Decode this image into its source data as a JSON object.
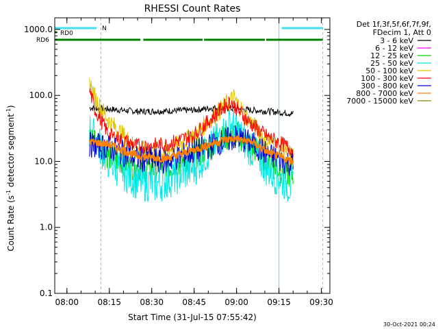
{
  "chart_data": {
    "type": "line",
    "title": "RHESSI Count Rates",
    "xlabel": "Start Time (31-Jul-15 07:55:42)",
    "ylabel": "Count Rate (s⁻¹ detector segment⁻¹)",
    "ylabel_main": "Count Rate (s",
    "ylabel_sup1": "-1",
    "ylabel_mid": " detector segment",
    "ylabel_sup2": "-1",
    "ylabel_end": ")",
    "y_scale": "log",
    "ylim": [
      0.1,
      1500
    ],
    "xlim": [
      "07:55:42",
      "09:33:00"
    ],
    "x_ticks": [
      "08:00",
      "08:15",
      "08:30",
      "08:45",
      "09:00",
      "09:15",
      "09:30"
    ],
    "y_ticks": [
      "1000.0",
      "100.0",
      "10.0",
      "1.0",
      "0.1"
    ],
    "legend_header": [
      "Det 1f,3f,5f,6f,7f,9f,",
      "FDecim 1, Att 0"
    ],
    "legend_position": "outside-right",
    "footer_date": "30-Oct-2021 00:24",
    "flags": [
      {
        "label": "N",
        "color": "#40e0f0",
        "segments": [
          [
            "07:55:42",
            "08:10:30"
          ],
          [
            "09:16:00",
            "09:30:30"
          ]
        ]
      },
      {
        "label": "RD0",
        "color": "#008000",
        "segments": [
          [
            "07:55:42",
            "07:56:30"
          ]
        ]
      },
      {
        "label": "RD6",
        "color": "#008000",
        "segments": [
          [
            "07:55:42",
            "08:26:00"
          ],
          [
            "08:27:00",
            "08:48:00"
          ],
          [
            "08:48:30",
            "09:10:00"
          ],
          [
            "09:10:30",
            "09:30:30"
          ]
        ]
      }
    ],
    "vertical_lines": [
      {
        "time": "07:55:42",
        "style": "solid",
        "color": "#40e0f0"
      },
      {
        "time": "08:12:00",
        "style": "dashed",
        "color": "#40e0f0"
      },
      {
        "time": "09:15:00",
        "style": "solid",
        "color": "#40e0f0"
      },
      {
        "time": "09:30:30",
        "style": "dashed",
        "color": "#40e0f0"
      }
    ],
    "series": [
      {
        "name": "3 - 6 keV",
        "color": "#000000",
        "points": [
          [
            "08:08:00",
            65
          ],
          [
            "08:15:00",
            62
          ],
          [
            "08:25:00",
            57
          ],
          [
            "08:35:00",
            58
          ],
          [
            "08:45:00",
            60
          ],
          [
            "08:52:00",
            65
          ],
          [
            "08:57:00",
            64
          ],
          [
            "09:05:00",
            60
          ],
          [
            "09:12:00",
            57
          ],
          [
            "09:20:00",
            53
          ]
        ]
      },
      {
        "name": "6 - 12 keV",
        "color": "#ff00ff",
        "points": []
      },
      {
        "name": "12 - 25 keV",
        "color": "#00d000",
        "points": [
          [
            "08:08:00",
            25
          ],
          [
            "08:15:00",
            12
          ],
          [
            "08:25:00",
            8
          ],
          [
            "08:35:00",
            8
          ],
          [
            "08:45:00",
            12
          ],
          [
            "08:55:00",
            22
          ],
          [
            "09:00:00",
            26
          ],
          [
            "09:05:00",
            18
          ],
          [
            "09:12:00",
            9
          ],
          [
            "09:20:00",
            6
          ]
        ]
      },
      {
        "name": "25 - 50 keV",
        "color": "#00e8e8",
        "points": [
          [
            "08:08:00",
            30
          ],
          [
            "08:15:00",
            10
          ],
          [
            "08:25:00",
            5
          ],
          [
            "08:32:00",
            4.5
          ],
          [
            "08:45:00",
            8
          ],
          [
            "08:55:00",
            25
          ],
          [
            "08:58:00",
            38
          ],
          [
            "09:03:00",
            20
          ],
          [
            "09:12:00",
            7
          ],
          [
            "09:20:00",
            4
          ]
        ]
      },
      {
        "name": "50 - 100 keV",
        "color": "#e0c000",
        "points": [
          [
            "08:08:00",
            160
          ],
          [
            "08:10:00",
            90
          ],
          [
            "08:15:00",
            40
          ],
          [
            "08:25:00",
            15
          ],
          [
            "08:35:00",
            14
          ],
          [
            "08:45:00",
            25
          ],
          [
            "08:55:00",
            65
          ],
          [
            "08:59:00",
            92
          ],
          [
            "09:03:00",
            50
          ],
          [
            "09:10:00",
            22
          ],
          [
            "09:20:00",
            12
          ]
        ]
      },
      {
        "name": "100 - 300 keV",
        "color": "#ff0000",
        "points": [
          [
            "08:08:00",
            120
          ],
          [
            "08:10:00",
            60
          ],
          [
            "08:15:00",
            25
          ],
          [
            "08:25:00",
            17
          ],
          [
            "08:35:00",
            18
          ],
          [
            "08:45:00",
            25
          ],
          [
            "08:55:00",
            65
          ],
          [
            "08:58:00",
            80
          ],
          [
            "09:03:00",
            45
          ],
          [
            "09:10:00",
            25
          ],
          [
            "09:20:00",
            15
          ]
        ]
      },
      {
        "name": "300 - 800 keV",
        "color": "#0000cc",
        "points": [
          [
            "08:08:00",
            18
          ],
          [
            "08:15:00",
            16
          ],
          [
            "08:25:00",
            11
          ],
          [
            "08:35:00",
            10
          ],
          [
            "08:45:00",
            14
          ],
          [
            "08:55:00",
            20
          ],
          [
            "09:00:00",
            23
          ],
          [
            "09:05:00",
            19
          ],
          [
            "09:12:00",
            12
          ],
          [
            "09:20:00",
            9
          ]
        ]
      },
      {
        "name": "800 - 7000 keV",
        "color": "#ff8000",
        "points": [
          [
            "08:08:00",
            20
          ],
          [
            "08:15:00",
            18
          ],
          [
            "08:25:00",
            12
          ],
          [
            "08:35:00",
            11
          ],
          [
            "08:45:00",
            15
          ],
          [
            "08:55:00",
            21
          ],
          [
            "09:00:00",
            22
          ],
          [
            "09:05:00",
            20
          ],
          [
            "09:12:00",
            13
          ],
          [
            "09:20:00",
            10
          ]
        ]
      },
      {
        "name": "7000 - 15000 keV",
        "color": "#808000",
        "points": []
      }
    ]
  }
}
